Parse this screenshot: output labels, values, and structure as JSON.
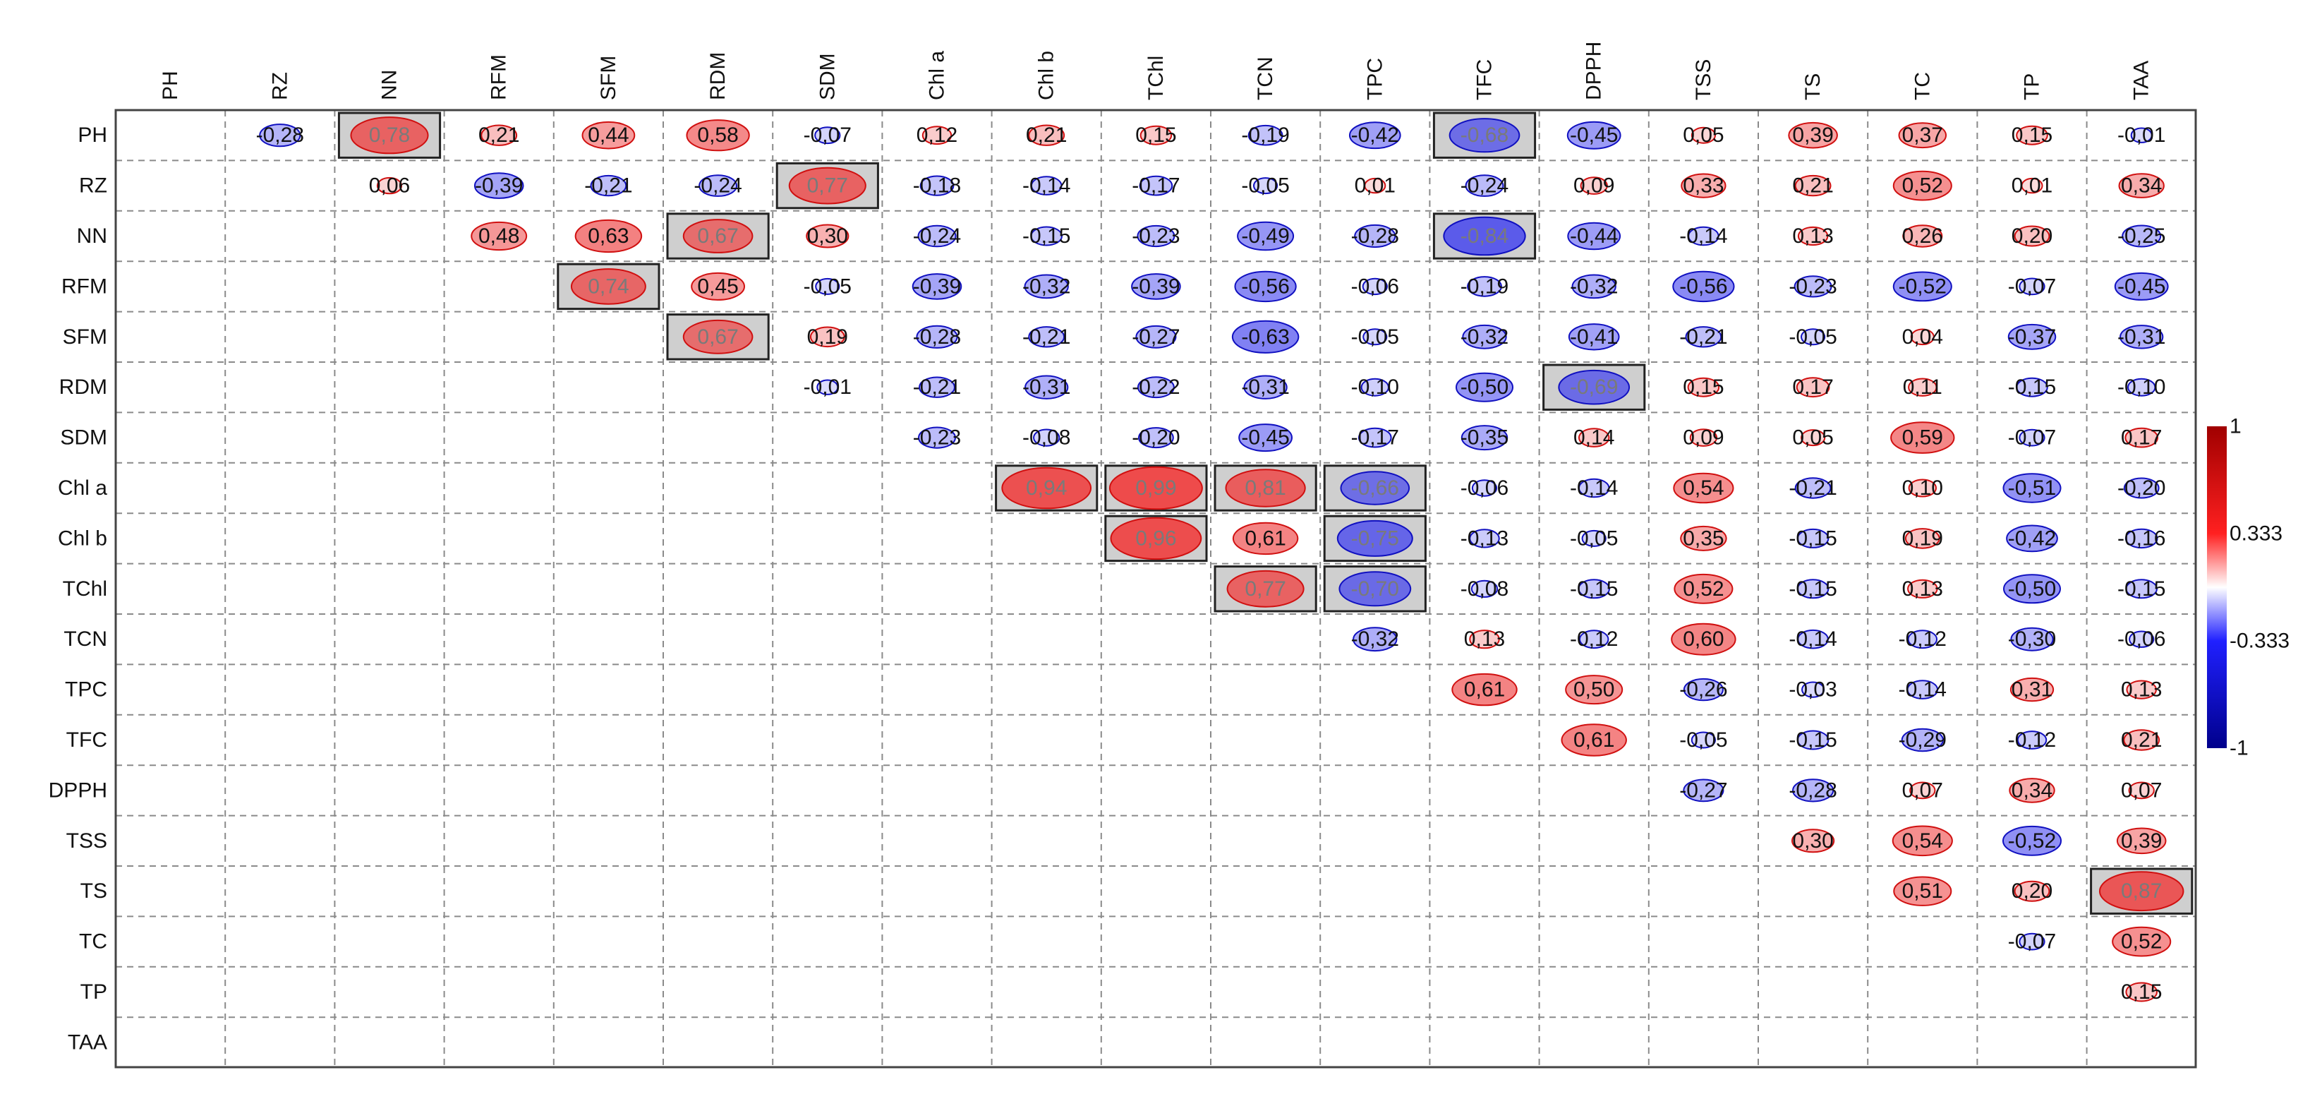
{
  "chart_data": {
    "type": "heatmap",
    "subtype": "upper-triangle correlation matrix",
    "variables": [
      "PH",
      "RZ",
      "NN",
      "RFM",
      "SFM",
      "RDM",
      "SDM",
      "Chl a",
      "Chl b",
      "TChl",
      "TCN",
      "TPC",
      "TFC",
      "DPPH",
      "TSS",
      "TS",
      "TC",
      "TP",
      "TAA"
    ],
    "matrix": [
      [
        null,
        -0.28,
        0.78,
        0.21,
        0.44,
        0.58,
        -0.07,
        0.12,
        0.21,
        0.15,
        -0.19,
        -0.42,
        -0.68,
        -0.45,
        0.05,
        0.39,
        0.37,
        0.15,
        -0.01
      ],
      [
        null,
        null,
        0.06,
        -0.39,
        -0.21,
        -0.24,
        0.77,
        -0.18,
        -0.14,
        -0.17,
        -0.05,
        0.01,
        -0.24,
        0.09,
        0.33,
        0.21,
        0.52,
        0.01,
        0.34
      ],
      [
        null,
        null,
        null,
        0.48,
        0.63,
        0.67,
        0.3,
        -0.24,
        -0.15,
        -0.23,
        -0.49,
        -0.28,
        -0.84,
        -0.44,
        -0.14,
        0.13,
        0.26,
        0.2,
        -0.25
      ],
      [
        null,
        null,
        null,
        null,
        0.74,
        0.45,
        -0.05,
        -0.39,
        -0.32,
        -0.39,
        -0.56,
        -0.06,
        -0.19,
        -0.32,
        -0.56,
        -0.23,
        -0.52,
        -0.07,
        -0.45
      ],
      [
        null,
        null,
        null,
        null,
        null,
        0.67,
        0.19,
        -0.28,
        -0.21,
        -0.27,
        -0.63,
        -0.05,
        -0.32,
        -0.41,
        -0.21,
        -0.05,
        0.04,
        -0.37,
        -0.31
      ],
      [
        null,
        null,
        null,
        null,
        null,
        null,
        -0.01,
        -0.21,
        -0.31,
        -0.22,
        -0.31,
        -0.1,
        -0.5,
        -0.69,
        0.15,
        0.17,
        0.11,
        -0.15,
        -0.1
      ],
      [
        null,
        null,
        null,
        null,
        null,
        null,
        null,
        -0.23,
        -0.08,
        -0.2,
        -0.45,
        -0.17,
        -0.35,
        0.14,
        0.09,
        0.05,
        0.59,
        -0.07,
        0.17
      ],
      [
        null,
        null,
        null,
        null,
        null,
        null,
        null,
        null,
        0.94,
        0.99,
        0.81,
        -0.66,
        -0.06,
        -0.14,
        0.54,
        -0.21,
        0.1,
        -0.51,
        -0.2
      ],
      [
        null,
        null,
        null,
        null,
        null,
        null,
        null,
        null,
        null,
        0.96,
        0.61,
        -0.75,
        -0.13,
        -0.05,
        0.35,
        -0.15,
        0.19,
        -0.42,
        -0.16
      ],
      [
        null,
        null,
        null,
        null,
        null,
        null,
        null,
        null,
        null,
        null,
        0.77,
        -0.7,
        -0.08,
        -0.15,
        0.52,
        -0.15,
        0.13,
        -0.5,
        -0.15
      ],
      [
        null,
        null,
        null,
        null,
        null,
        null,
        null,
        null,
        null,
        null,
        null,
        -0.32,
        0.13,
        -0.12,
        0.6,
        -0.14,
        -0.12,
        -0.3,
        -0.06
      ],
      [
        null,
        null,
        null,
        null,
        null,
        null,
        null,
        null,
        null,
        null,
        null,
        null,
        0.61,
        0.5,
        -0.26,
        -0.03,
        -0.14,
        0.31,
        0.13
      ],
      [
        null,
        null,
        null,
        null,
        null,
        null,
        null,
        null,
        null,
        null,
        null,
        null,
        null,
        0.61,
        -0.05,
        -0.15,
        -0.29,
        -0.12,
        0.21
      ],
      [
        null,
        null,
        null,
        null,
        null,
        null,
        null,
        null,
        null,
        null,
        null,
        null,
        null,
        null,
        -0.27,
        -0.28,
        0.07,
        0.34,
        0.07
      ],
      [
        null,
        null,
        null,
        null,
        null,
        null,
        null,
        null,
        null,
        null,
        null,
        null,
        null,
        null,
        null,
        0.3,
        0.54,
        -0.52,
        0.39
      ],
      [
        null,
        null,
        null,
        null,
        null,
        null,
        null,
        null,
        null,
        null,
        null,
        null,
        null,
        null,
        null,
        null,
        0.51,
        0.2,
        0.87
      ],
      [
        null,
        null,
        null,
        null,
        null,
        null,
        null,
        null,
        null,
        null,
        null,
        null,
        null,
        null,
        null,
        null,
        null,
        -0.07,
        0.52
      ],
      [
        null,
        null,
        null,
        null,
        null,
        null,
        null,
        null,
        null,
        null,
        null,
        null,
        null,
        null,
        null,
        null,
        null,
        null,
        0.15
      ],
      [
        null,
        null,
        null,
        null,
        null,
        null,
        null,
        null,
        null,
        null,
        null,
        null,
        null,
        null,
        null,
        null,
        null,
        null,
        null
      ]
    ],
    "highlighted_cells": [
      [
        0,
        2
      ],
      [
        0,
        12
      ],
      [
        1,
        6
      ],
      [
        2,
        5
      ],
      [
        2,
        12
      ],
      [
        3,
        4
      ],
      [
        4,
        5
      ],
      [
        5,
        13
      ],
      [
        7,
        8
      ],
      [
        7,
        9
      ],
      [
        7,
        10
      ],
      [
        7,
        11
      ],
      [
        8,
        9
      ],
      [
        8,
        11
      ],
      [
        9,
        10
      ],
      [
        9,
        11
      ],
      [
        15,
        18
      ]
    ],
    "decimal_separator": ",",
    "color_scale": {
      "range": [
        -1,
        1
      ],
      "ticks": [
        1,
        0.333,
        -0.333,
        -1
      ],
      "tick_labels": [
        "1",
        "0.333",
        "-0.333",
        "-1"
      ],
      "colors": [
        "#00008b",
        "#2020ff",
        "#ffffff",
        "#ff2020",
        "#b00000"
      ]
    },
    "title": "",
    "xlabel": "",
    "ylabel": "",
    "legend": "right"
  }
}
